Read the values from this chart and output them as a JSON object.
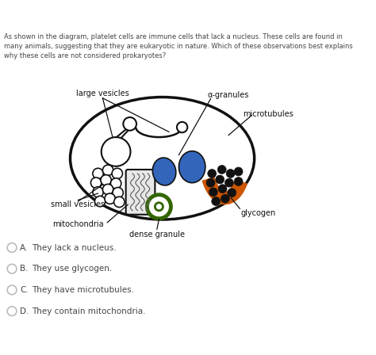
{
  "question_text": "As shown in the diagram, platelet cells are immune cells that lack a nucleus. These cells are found in\nmany animals, suggesting that they are eukaryotic in nature. Which of these observations best explains\nwhy these cells are not considered prokaryotes?",
  "labels": {
    "large_vesicles": "large vesicles",
    "alpha_granules": "α-granules",
    "microtubules": "microtubules",
    "small_vesicles": "small vesicles",
    "mitochondria": "mitochondria",
    "dense_granule": "dense granule",
    "glycogen": "glycogen"
  },
  "answer_options": [
    [
      "A.",
      "They lack a nucleus."
    ],
    [
      "B.",
      "They use glycogen."
    ],
    [
      "C.",
      "They have microtubules."
    ],
    [
      "D.",
      "They contain mitochondria."
    ]
  ],
  "blue_color": "#3366bb",
  "orange_color": "#cc5500",
  "green_color": "#336600",
  "black": "#111111",
  "bg_color": "#ffffff",
  "text_color": "#444444",
  "label_fontsize": 7.0,
  "q_fontsize": 6.0,
  "ans_fontsize": 7.5
}
